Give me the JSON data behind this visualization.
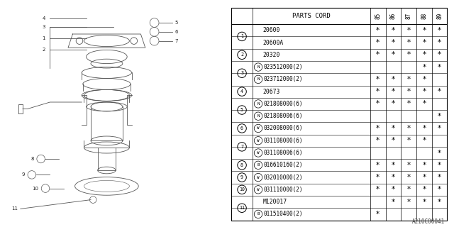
{
  "watermark": "A210C00041",
  "table_header": "PARTS CORD",
  "col_headers": [
    "85",
    "86",
    "87",
    "88",
    "89"
  ],
  "rows": [
    {
      "ref": "1",
      "part": "20600",
      "prefix": "",
      "marks": [
        true,
        true,
        true,
        true,
        true
      ]
    },
    {
      "ref": "",
      "part": "20600A",
      "prefix": "",
      "marks": [
        true,
        true,
        true,
        true,
        true
      ]
    },
    {
      "ref": "2",
      "part": "20320",
      "prefix": "",
      "marks": [
        true,
        true,
        true,
        true,
        true
      ]
    },
    {
      "ref": "3",
      "part": "023512000(2)",
      "prefix": "N",
      "marks": [
        false,
        false,
        false,
        true,
        true
      ]
    },
    {
      "ref": "",
      "part": "023712000(2)",
      "prefix": "N",
      "marks": [
        true,
        true,
        true,
        true,
        false
      ]
    },
    {
      "ref": "4",
      "part": "20673",
      "prefix": "",
      "marks": [
        true,
        true,
        true,
        true,
        true
      ]
    },
    {
      "ref": "5",
      "part": "021808000(6)",
      "prefix": "N",
      "marks": [
        true,
        true,
        true,
        true,
        false
      ]
    },
    {
      "ref": "",
      "part": "021808006(6)",
      "prefix": "N",
      "marks": [
        false,
        false,
        false,
        false,
        true
      ]
    },
    {
      "ref": "6",
      "part": "032008000(6)",
      "prefix": "W",
      "marks": [
        true,
        true,
        true,
        true,
        true
      ]
    },
    {
      "ref": "7",
      "part": "031108000(6)",
      "prefix": "W",
      "marks": [
        true,
        true,
        true,
        true,
        false
      ]
    },
    {
      "ref": "",
      "part": "031108006(6)",
      "prefix": "W",
      "marks": [
        false,
        false,
        false,
        false,
        true
      ]
    },
    {
      "ref": "8",
      "part": "016610160(2)",
      "prefix": "B",
      "marks": [
        true,
        true,
        true,
        true,
        true
      ]
    },
    {
      "ref": "9",
      "part": "032010000(2)",
      "prefix": "W",
      "marks": [
        true,
        true,
        true,
        true,
        true
      ]
    },
    {
      "ref": "10",
      "part": "031110000(2)",
      "prefix": "W",
      "marks": [
        true,
        true,
        true,
        true,
        true
      ]
    },
    {
      "ref": "11",
      "part": "M120017",
      "prefix": "",
      "marks": [
        false,
        true,
        true,
        true,
        true
      ]
    },
    {
      "ref": "",
      "part": "011510400(2)",
      "prefix": "B",
      "marks": [
        true,
        false,
        false,
        false,
        false
      ]
    }
  ],
  "bg_color": "#ffffff",
  "text_color": "#000000"
}
